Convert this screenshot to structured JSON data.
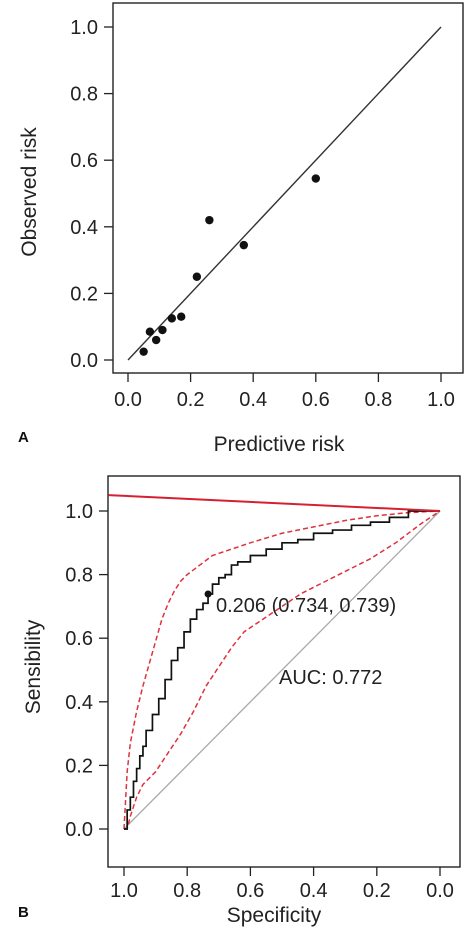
{
  "chart_data": [
    {
      "type": "scatter",
      "panel_label": "A",
      "xlabel": "Predictive risk",
      "ylabel": "Observed risk",
      "xlim": [
        0,
        1
      ],
      "ylim": [
        0,
        1
      ],
      "xticks": [
        "0.0",
        "0.2",
        "0.4",
        "0.6",
        "0.8",
        "1.0"
      ],
      "yticks": [
        "0.0",
        "0.2",
        "0.4",
        "0.6",
        "0.8",
        "1.0"
      ],
      "reference_line": {
        "from": [
          0,
          0
        ],
        "to": [
          1,
          1
        ]
      },
      "points": [
        {
          "x": 0.05,
          "y": 0.025
        },
        {
          "x": 0.07,
          "y": 0.085
        },
        {
          "x": 0.09,
          "y": 0.06
        },
        {
          "x": 0.11,
          "y": 0.09
        },
        {
          "x": 0.14,
          "y": 0.125
        },
        {
          "x": 0.17,
          "y": 0.13
        },
        {
          "x": 0.22,
          "y": 0.25
        },
        {
          "x": 0.26,
          "y": 0.42
        },
        {
          "x": 0.37,
          "y": 0.345
        },
        {
          "x": 0.6,
          "y": 0.545
        }
      ],
      "grid": false
    },
    {
      "type": "line",
      "panel_label": "B",
      "xlabel": "Specificity",
      "ylabel": "Sensibility",
      "xlim": [
        1,
        0
      ],
      "ylim": [
        0,
        1
      ],
      "xticks": [
        "1.0",
        "0.8",
        "0.6",
        "0.4",
        "0.2",
        "0.0"
      ],
      "yticks": [
        "0.0",
        "0.2",
        "0.4",
        "0.6",
        "0.8",
        "1.0"
      ],
      "annotations": [
        "0.206 (0.734, 0.739)",
        "AUC: 0.772"
      ],
      "threshold_point": {
        "x": 0.734,
        "y": 0.739
      },
      "colors": {
        "roc": "#111111",
        "ci": "#e0313d",
        "top_line": "#d42032",
        "diagonal": "#a9a9a9"
      },
      "series": [
        {
          "role": "roc",
          "x": [
            1.0,
            0.99,
            0.99,
            0.98,
            0.97,
            0.96,
            0.95,
            0.94,
            0.93,
            0.91,
            0.89,
            0.87,
            0.85,
            0.83,
            0.81,
            0.79,
            0.77,
            0.75,
            0.734,
            0.72,
            0.7,
            0.68,
            0.66,
            0.64,
            0.6,
            0.55,
            0.5,
            0.45,
            0.4,
            0.34,
            0.28,
            0.22,
            0.16,
            0.1,
            0.0
          ],
          "y": [
            0.0,
            0.02,
            0.06,
            0.1,
            0.15,
            0.19,
            0.23,
            0.26,
            0.31,
            0.36,
            0.41,
            0.47,
            0.53,
            0.57,
            0.62,
            0.66,
            0.69,
            0.71,
            0.739,
            0.77,
            0.79,
            0.8,
            0.83,
            0.84,
            0.86,
            0.88,
            0.9,
            0.91,
            0.93,
            0.94,
            0.955,
            0.965,
            0.98,
            1.0,
            1.0
          ]
        },
        {
          "role": "ci-upper",
          "x": [
            1.0,
            0.99,
            0.98,
            0.96,
            0.94,
            0.92,
            0.9,
            0.88,
            0.86,
            0.84,
            0.82,
            0.8,
            0.76,
            0.72,
            0.66,
            0.6,
            0.5,
            0.4,
            0.3,
            0.2,
            0.1,
            0.0
          ],
          "y": [
            0.0,
            0.18,
            0.27,
            0.37,
            0.45,
            0.52,
            0.59,
            0.66,
            0.71,
            0.75,
            0.78,
            0.8,
            0.83,
            0.86,
            0.88,
            0.9,
            0.93,
            0.95,
            0.97,
            0.985,
            0.995,
            1.0
          ]
        },
        {
          "role": "ci-lower",
          "x": [
            1.0,
            0.99,
            0.98,
            0.96,
            0.94,
            0.92,
            0.9,
            0.86,
            0.82,
            0.78,
            0.74,
            0.7,
            0.66,
            0.62,
            0.56,
            0.5,
            0.44,
            0.38,
            0.3,
            0.22,
            0.14,
            0.06,
            0.0
          ],
          "y": [
            0.0,
            0.0,
            0.04,
            0.1,
            0.14,
            0.16,
            0.18,
            0.24,
            0.3,
            0.37,
            0.45,
            0.51,
            0.57,
            0.62,
            0.66,
            0.7,
            0.74,
            0.77,
            0.81,
            0.85,
            0.9,
            0.96,
            1.0
          ]
        },
        {
          "role": "diagonal",
          "x": [
            1.0,
            0.0
          ],
          "y": [
            0.0,
            1.0
          ]
        },
        {
          "role": "top-line",
          "x": [
            1.05,
            0.0
          ],
          "y": [
            1.05,
            1.0
          ]
        }
      ],
      "grid": false
    }
  ]
}
